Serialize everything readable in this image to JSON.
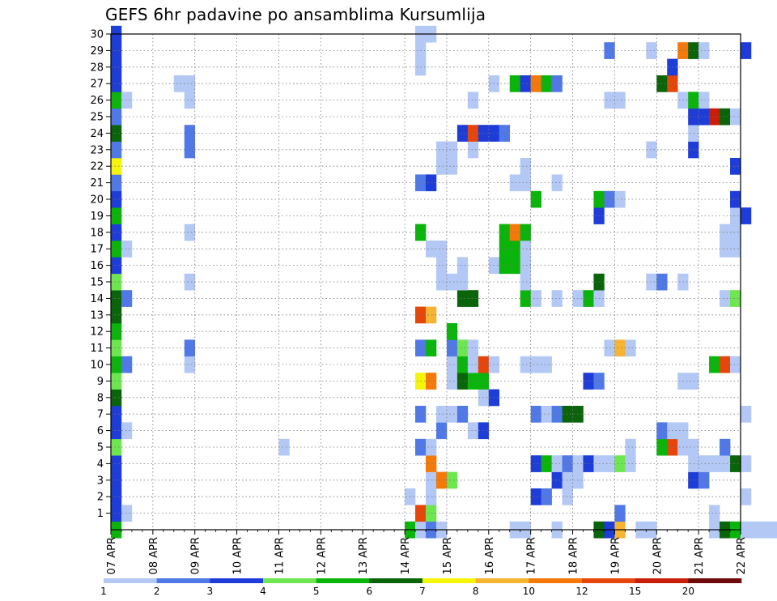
{
  "chart_data": {
    "type": "heatmap",
    "title": "GEFS 6hr padavine po ansamblima Kursumlija",
    "xlabel": "",
    "ylabel": "",
    "x_tick_labels": [
      "07 APR",
      "08 APR",
      "09 APR",
      "10 APR",
      "11 APR",
      "12 APR",
      "13 APR",
      "14 APR",
      "15 APR",
      "16 APR",
      "17 APR",
      "18 APR",
      "19 APR",
      "20 APR",
      "21 APR",
      "22 APR"
    ],
    "y_tick_labels": [
      "1",
      "2",
      "3",
      "4",
      "5",
      "6",
      "7",
      "8",
      "9",
      "10",
      "11",
      "12",
      "13",
      "14",
      "15",
      "16",
      "17",
      "18",
      "19",
      "20",
      "21",
      "22",
      "23",
      "24",
      "25",
      "26",
      "27",
      "28",
      "29",
      "30"
    ],
    "x_range": [
      "07 APR 00Z",
      "22 APR 00Z"
    ],
    "time_step_hours": 6,
    "y_range": [
      0,
      30
    ],
    "grid": true,
    "legend": {
      "placement": "bottom",
      "bins": [
        {
          "min": 1,
          "max": 2,
          "color": "#b4c8f5"
        },
        {
          "min": 2,
          "max": 3,
          "color": "#5078e6"
        },
        {
          "min": 3,
          "max": 4,
          "color": "#1e3cd7"
        },
        {
          "min": 4,
          "max": 5,
          "color": "#6ee650"
        },
        {
          "min": 5,
          "max": 6,
          "color": "#0ab40a"
        },
        {
          "min": 6,
          "max": 7,
          "color": "#0a640a"
        },
        {
          "min": 7,
          "max": 8,
          "color": "#f5f50a"
        },
        {
          "min": 8,
          "max": 10,
          "color": "#f5b432"
        },
        {
          "min": 10,
          "max": 12,
          "color": "#f5780a"
        },
        {
          "min": 12,
          "max": 15,
          "color": "#e6460a"
        },
        {
          "min": 15,
          "max": 20,
          "color": "#c81e0a"
        },
        {
          "min": 20,
          "max": 25,
          "color": "#6e0a0a"
        }
      ],
      "tick_labels": [
        "1",
        "2",
        "3",
        "4",
        "5",
        "6",
        "7",
        "8",
        "10",
        "12",
        "15",
        "20"
      ]
    },
    "cells_note": "each cell: member (y row, 0-30), step index (6-hourly from 07 APR 00Z), precipitation category 0-11 = legend bin",
    "cells": [
      [
        0,
        0,
        4
      ],
      [
        0,
        28,
        4
      ],
      [
        0,
        29,
        0
      ],
      [
        0,
        30,
        1
      ],
      [
        0,
        31,
        0
      ],
      [
        0,
        38,
        0
      ],
      [
        0,
        39,
        0
      ],
      [
        0,
        42,
        0
      ],
      [
        0,
        46,
        5
      ],
      [
        0,
        47,
        2
      ],
      [
        0,
        48,
        7
      ],
      [
        0,
        50,
        0
      ],
      [
        0,
        51,
        0
      ],
      [
        0,
        57,
        0
      ],
      [
        0,
        58,
        5
      ],
      [
        0,
        59,
        4
      ],
      [
        0,
        60,
        0
      ],
      [
        0,
        61,
        0
      ],
      [
        0,
        62,
        0
      ],
      [
        0,
        63,
        0
      ],
      [
        0,
        64,
        0
      ],
      [
        0,
        65,
        0
      ],
      [
        1,
        0,
        2
      ],
      [
        1,
        1,
        0
      ],
      [
        1,
        29,
        9
      ],
      [
        1,
        30,
        3
      ],
      [
        1,
        48,
        1
      ],
      [
        1,
        57,
        0
      ],
      [
        2,
        0,
        2
      ],
      [
        2,
        28,
        0
      ],
      [
        2,
        30,
        0
      ],
      [
        2,
        40,
        2
      ],
      [
        2,
        41,
        1
      ],
      [
        2,
        43,
        0
      ],
      [
        2,
        60,
        0
      ],
      [
        3,
        0,
        2
      ],
      [
        3,
        30,
        0
      ],
      [
        3,
        31,
        8
      ],
      [
        3,
        32,
        3
      ],
      [
        3,
        42,
        2
      ],
      [
        3,
        43,
        0
      ],
      [
        3,
        44,
        0
      ],
      [
        3,
        55,
        2
      ],
      [
        3,
        56,
        1
      ],
      [
        4,
        0,
        2
      ],
      [
        4,
        30,
        8
      ],
      [
        4,
        40,
        2
      ],
      [
        4,
        41,
        4
      ],
      [
        4,
        42,
        0
      ],
      [
        4,
        43,
        1
      ],
      [
        4,
        44,
        0
      ],
      [
        4,
        45,
        2
      ],
      [
        4,
        46,
        0
      ],
      [
        4,
        47,
        0
      ],
      [
        4,
        48,
        3
      ],
      [
        4,
        49,
        0
      ],
      [
        4,
        55,
        0
      ],
      [
        4,
        56,
        0
      ],
      [
        4,
        57,
        0
      ],
      [
        4,
        58,
        0
      ],
      [
        4,
        59,
        5
      ],
      [
        4,
        60,
        0
      ],
      [
        5,
        0,
        3
      ],
      [
        5,
        16,
        0
      ],
      [
        5,
        29,
        1
      ],
      [
        5,
        30,
        0
      ],
      [
        5,
        49,
        0
      ],
      [
        5,
        52,
        4
      ],
      [
        5,
        53,
        9
      ],
      [
        5,
        54,
        0
      ],
      [
        5,
        55,
        0
      ],
      [
        5,
        58,
        1
      ],
      [
        6,
        0,
        2
      ],
      [
        6,
        1,
        0
      ],
      [
        6,
        31,
        1
      ],
      [
        6,
        34,
        0
      ],
      [
        6,
        35,
        2
      ],
      [
        6,
        52,
        1
      ],
      [
        6,
        53,
        0
      ],
      [
        6,
        54,
        0
      ],
      [
        7,
        0,
        2
      ],
      [
        7,
        29,
        1
      ],
      [
        7,
        31,
        0
      ],
      [
        7,
        32,
        0
      ],
      [
        7,
        33,
        1
      ],
      [
        7,
        40,
        1
      ],
      [
        7,
        41,
        0
      ],
      [
        7,
        42,
        1
      ],
      [
        7,
        43,
        5
      ],
      [
        7,
        44,
        5
      ],
      [
        7,
        60,
        0
      ],
      [
        8,
        0,
        5
      ],
      [
        8,
        35,
        0
      ],
      [
        8,
        36,
        2
      ],
      [
        9,
        0,
        3
      ],
      [
        9,
        29,
        6
      ],
      [
        9,
        30,
        8
      ],
      [
        9,
        32,
        0
      ],
      [
        9,
        33,
        5
      ],
      [
        9,
        34,
        4
      ],
      [
        9,
        35,
        4
      ],
      [
        9,
        45,
        2
      ],
      [
        9,
        46,
        1
      ],
      [
        9,
        54,
        0
      ],
      [
        9,
        55,
        0
      ],
      [
        10,
        0,
        4
      ],
      [
        10,
        1,
        1
      ],
      [
        10,
        7,
        0
      ],
      [
        10,
        32,
        0
      ],
      [
        10,
        33,
        4
      ],
      [
        10,
        34,
        0
      ],
      [
        10,
        35,
        9
      ],
      [
        10,
        36,
        0
      ],
      [
        10,
        39,
        0
      ],
      [
        10,
        40,
        0
      ],
      [
        10,
        41,
        0
      ],
      [
        10,
        57,
        4
      ],
      [
        10,
        58,
        9
      ],
      [
        10,
        59,
        0
      ],
      [
        11,
        0,
        3
      ],
      [
        11,
        7,
        1
      ],
      [
        11,
        29,
        1
      ],
      [
        11,
        30,
        4
      ],
      [
        11,
        32,
        1
      ],
      [
        11,
        33,
        3
      ],
      [
        11,
        34,
        0
      ],
      [
        11,
        47,
        0
      ],
      [
        11,
        48,
        7
      ],
      [
        11,
        49,
        0
      ],
      [
        12,
        0,
        4
      ],
      [
        12,
        32,
        4
      ],
      [
        13,
        0,
        5
      ],
      [
        13,
        29,
        9
      ],
      [
        13,
        30,
        7
      ],
      [
        14,
        0,
        5
      ],
      [
        14,
        1,
        1
      ],
      [
        14,
        33,
        5
      ],
      [
        14,
        34,
        5
      ],
      [
        14,
        39,
        4
      ],
      [
        14,
        40,
        0
      ],
      [
        14,
        42,
        0
      ],
      [
        14,
        44,
        0
      ],
      [
        14,
        45,
        4
      ],
      [
        14,
        46,
        0
      ],
      [
        14,
        58,
        0
      ],
      [
        14,
        59,
        3
      ],
      [
        15,
        0,
        3
      ],
      [
        15,
        7,
        0
      ],
      [
        15,
        31,
        0
      ],
      [
        15,
        32,
        0
      ],
      [
        15,
        33,
        0
      ],
      [
        15,
        39,
        0
      ],
      [
        15,
        46,
        5
      ],
      [
        15,
        51,
        0
      ],
      [
        15,
        52,
        1
      ],
      [
        15,
        54,
        0
      ],
      [
        16,
        0,
        2
      ],
      [
        16,
        31,
        0
      ],
      [
        16,
        33,
        0
      ],
      [
        16,
        36,
        0
      ],
      [
        16,
        37,
        4
      ],
      [
        16,
        38,
        4
      ],
      [
        16,
        39,
        0
      ],
      [
        17,
        0,
        4
      ],
      [
        17,
        1,
        0
      ],
      [
        17,
        30,
        0
      ],
      [
        17,
        31,
        0
      ],
      [
        17,
        37,
        4
      ],
      [
        17,
        38,
        4
      ],
      [
        17,
        39,
        0
      ],
      [
        17,
        58,
        0
      ],
      [
        17,
        59,
        0
      ],
      [
        18,
        0,
        2
      ],
      [
        18,
        7,
        0
      ],
      [
        18,
        29,
        4
      ],
      [
        18,
        37,
        4
      ],
      [
        18,
        38,
        8
      ],
      [
        18,
        39,
        4
      ],
      [
        18,
        58,
        0
      ],
      [
        18,
        59,
        0
      ],
      [
        19,
        0,
        4
      ],
      [
        19,
        46,
        2
      ],
      [
        19,
        59,
        0
      ],
      [
        19,
        60,
        2
      ],
      [
        20,
        0,
        2
      ],
      [
        20,
        40,
        4
      ],
      [
        20,
        46,
        4
      ],
      [
        20,
        47,
        1
      ],
      [
        20,
        48,
        0
      ],
      [
        20,
        59,
        2
      ],
      [
        21,
        0,
        1
      ],
      [
        21,
        29,
        1
      ],
      [
        21,
        30,
        2
      ],
      [
        21,
        38,
        0
      ],
      [
        21,
        39,
        0
      ],
      [
        21,
        42,
        0
      ],
      [
        22,
        0,
        6
      ],
      [
        22,
        31,
        0
      ],
      [
        22,
        32,
        0
      ],
      [
        22,
        39,
        0
      ],
      [
        22,
        59,
        2
      ],
      [
        23,
        0,
        1
      ],
      [
        23,
        7,
        1
      ],
      [
        23,
        31,
        0
      ],
      [
        23,
        32,
        0
      ],
      [
        23,
        34,
        0
      ],
      [
        23,
        51,
        0
      ],
      [
        23,
        55,
        2
      ],
      [
        24,
        0,
        5
      ],
      [
        24,
        7,
        1
      ],
      [
        24,
        33,
        2
      ],
      [
        24,
        34,
        9
      ],
      [
        24,
        35,
        2
      ],
      [
        24,
        36,
        2
      ],
      [
        24,
        37,
        1
      ],
      [
        24,
        55,
        0
      ],
      [
        25,
        0,
        1
      ],
      [
        25,
        55,
        2
      ],
      [
        25,
        56,
        2
      ],
      [
        25,
        57,
        10
      ],
      [
        25,
        58,
        5
      ],
      [
        25,
        59,
        0
      ],
      [
        26,
        0,
        4
      ],
      [
        26,
        1,
        0
      ],
      [
        26,
        7,
        0
      ],
      [
        26,
        34,
        0
      ],
      [
        26,
        47,
        0
      ],
      [
        26,
        48,
        0
      ],
      [
        26,
        54,
        0
      ],
      [
        26,
        55,
        4
      ],
      [
        26,
        56,
        0
      ],
      [
        27,
        0,
        2
      ],
      [
        27,
        6,
        0
      ],
      [
        27,
        7,
        0
      ],
      [
        27,
        36,
        0
      ],
      [
        27,
        38,
        4
      ],
      [
        27,
        39,
        2
      ],
      [
        27,
        40,
        8
      ],
      [
        27,
        41,
        4
      ],
      [
        27,
        42,
        1
      ],
      [
        27,
        52,
        5
      ],
      [
        27,
        53,
        9
      ],
      [
        28,
        0,
        2
      ],
      [
        28,
        29,
        0
      ],
      [
        28,
        53,
        2
      ],
      [
        29,
        0,
        2
      ],
      [
        29,
        29,
        0
      ],
      [
        29,
        47,
        1
      ],
      [
        29,
        51,
        0
      ],
      [
        29,
        54,
        8
      ],
      [
        29,
        55,
        5
      ],
      [
        29,
        56,
        0
      ],
      [
        29,
        60,
        2
      ],
      [
        30,
        0,
        2
      ],
      [
        30,
        29,
        0
      ],
      [
        30,
        30,
        0
      ]
    ]
  }
}
